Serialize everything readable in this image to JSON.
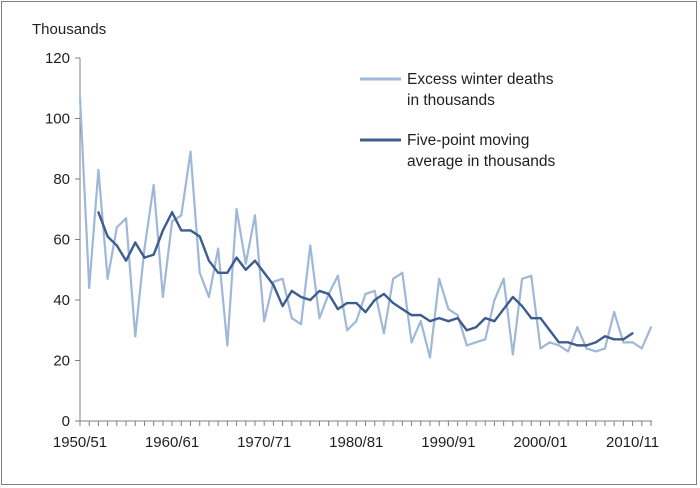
{
  "chart_data": {
    "type": "line",
    "ylabel": "Thousands",
    "ylim": [
      0,
      120
    ],
    "yticks": [
      0,
      20,
      40,
      60,
      80,
      100,
      120
    ],
    "xlim": [
      1950,
      2012
    ],
    "xticks": [
      {
        "x": 1950,
        "label": "1950/51"
      },
      {
        "x": 1960,
        "label": "1960/61"
      },
      {
        "x": 1970,
        "label": "1970/71"
      },
      {
        "x": 1980,
        "label": "1980/81"
      },
      {
        "x": 1990,
        "label": "1990/91"
      },
      {
        "x": 2000,
        "label": "2000/01"
      },
      {
        "x": 2010,
        "label": "2010/11"
      }
    ],
    "grid": false,
    "legend_position": "top-right",
    "series": [
      {
        "name": "Excess winter deaths in thousands",
        "legend_lines": [
          "Excess winter deaths",
          "in thousands"
        ],
        "color": "#9fb8d8",
        "x_start": 1950,
        "values": [
          107,
          44,
          83,
          47,
          64,
          67,
          28,
          57,
          78,
          41,
          66,
          68,
          89,
          49,
          41,
          57,
          25,
          70,
          52,
          68,
          33,
          46,
          47,
          34,
          32,
          58,
          34,
          42,
          48,
          30,
          33,
          42,
          43,
          29,
          47,
          49,
          26,
          33,
          21,
          47,
          37,
          35,
          25,
          26,
          27,
          40,
          47,
          22,
          47,
          48,
          24,
          26,
          25,
          23,
          31,
          24,
          23,
          24,
          36,
          26,
          26,
          24,
          31
        ]
      },
      {
        "name": "Five-point moving average in thousands",
        "legend_lines": [
          "Five-point moving",
          "average in thousands"
        ],
        "color": "#3d5c8f",
        "x_start": 1952,
        "values": [
          69,
          61,
          58,
          53,
          59,
          54,
          55,
          63,
          69,
          63,
          63,
          61,
          53,
          49,
          49,
          54,
          50,
          53,
          49,
          45,
          38,
          43,
          41,
          40,
          43,
          42,
          37,
          39,
          39,
          36,
          40,
          42,
          39,
          37,
          35,
          35,
          33,
          34,
          33,
          34,
          30,
          31,
          34,
          33,
          37,
          41,
          38,
          34,
          34,
          30,
          26,
          26,
          25,
          25,
          26,
          28,
          27,
          27,
          29
        ]
      }
    ]
  }
}
